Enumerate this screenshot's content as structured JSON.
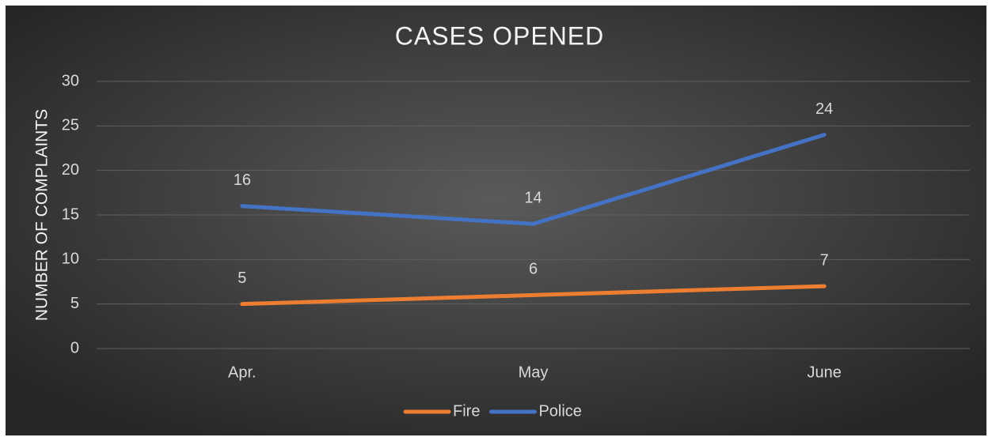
{
  "chart_data": {
    "type": "line",
    "title": "CASES OPENED",
    "y_label": "NUMBER OF COMPLAINTS",
    "categories": [
      "Apr.",
      "May",
      "June"
    ],
    "series": [
      {
        "name": "Fire",
        "color": "#ed7d31",
        "values": [
          5,
          6,
          7
        ]
      },
      {
        "name": "Police",
        "color": "#4472c4",
        "values": [
          16,
          14,
          24
        ]
      }
    ],
    "ylim": [
      0,
      30
    ],
    "yticks": [
      0,
      5,
      10,
      15,
      20,
      25,
      30
    ],
    "grid": true,
    "legend": "bottom",
    "data_labels": true
  }
}
